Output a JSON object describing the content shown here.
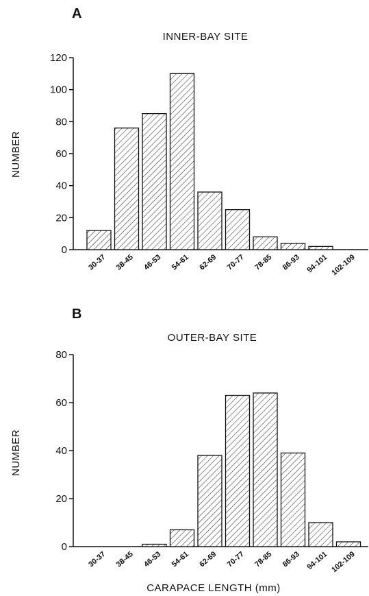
{
  "chart_data": [
    {
      "type": "bar",
      "panel_label": "A",
      "title": "INNER-BAY SITE",
      "ylabel": "NUMBER",
      "xlabel": "",
      "categories": [
        "30-37",
        "38-45",
        "46-53",
        "54-61",
        "62-69",
        "70-77",
        "78-85",
        "86-93",
        "94-101",
        "102-109"
      ],
      "values": [
        12,
        76,
        85,
        110,
        36,
        25,
        8,
        4,
        2,
        0
      ],
      "ylim": [
        0,
        120
      ],
      "yticks": [
        "0",
        "20",
        "40",
        "60",
        "80",
        "100",
        "120"
      ],
      "fill_pattern": "diagonal-hatch",
      "grid": false
    },
    {
      "type": "bar",
      "panel_label": "B",
      "title": "OUTER-BAY SITE",
      "ylabel": "NUMBER",
      "xlabel": "CARAPACE LENGTH (mm)",
      "categories": [
        "30-37",
        "38-45",
        "46-53",
        "54-61",
        "62-69",
        "70-77",
        "78-85",
        "86-93",
        "94-101",
        "102-109"
      ],
      "values": [
        0,
        0,
        1,
        7,
        38,
        63,
        64,
        39,
        10,
        2
      ],
      "ylim": [
        0,
        80
      ],
      "yticks": [
        "0",
        "20",
        "40",
        "60",
        "80"
      ],
      "fill_pattern": "diagonal-hatch",
      "grid": false
    }
  ]
}
